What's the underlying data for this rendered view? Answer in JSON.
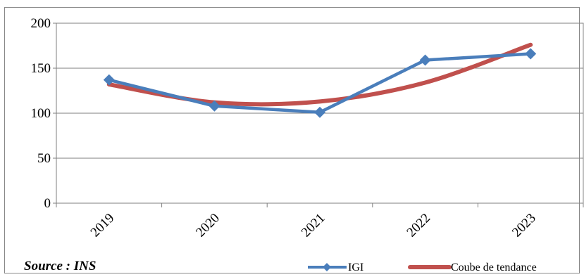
{
  "chart_data": {
    "type": "line",
    "categories": [
      "2019",
      "2020",
      "2021",
      "2022",
      "2023"
    ],
    "ylim": [
      0,
      200
    ],
    "yticks": [
      0,
      50,
      100,
      150,
      200
    ],
    "grid": true,
    "legend_position": "bottom-right",
    "series": [
      {
        "name": "IGI",
        "values": [
          137,
          108,
          101,
          159,
          166
        ],
        "color": "#4a7ebb",
        "marker": "diamond"
      },
      {
        "name": "Coube de tendance",
        "values": [
          132,
          112,
          113,
          134,
          176
        ],
        "color": "#c0504d",
        "smooth": true
      }
    ],
    "source": "Source : INS"
  }
}
